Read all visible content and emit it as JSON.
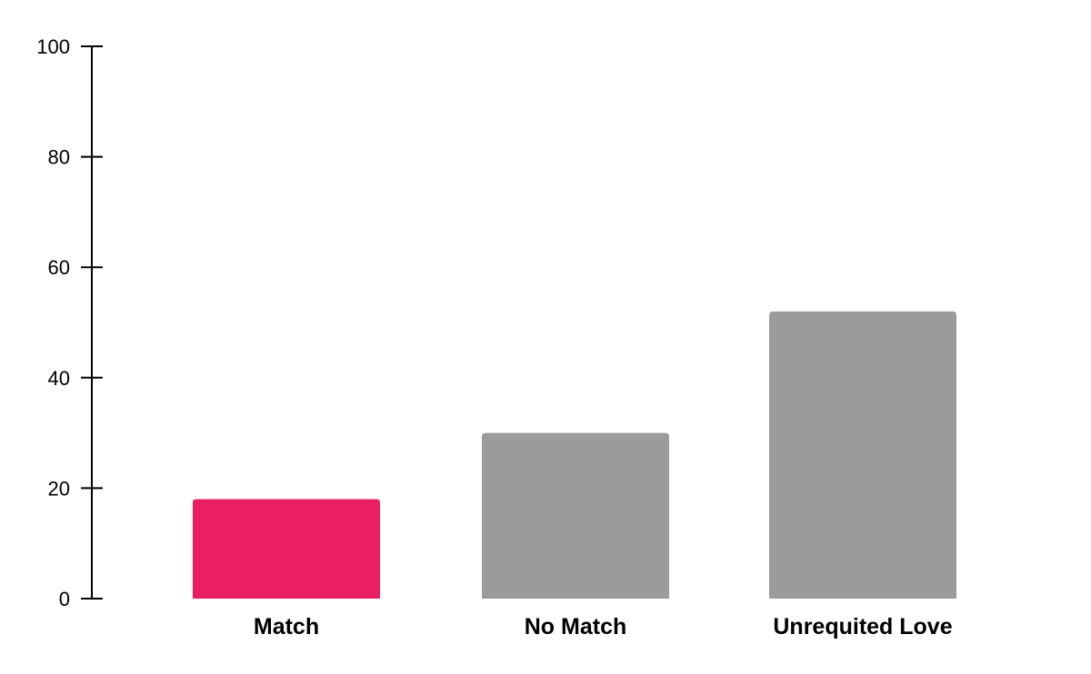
{
  "chart_data": {
    "type": "bar",
    "title": "",
    "xlabel": "",
    "ylabel": "",
    "categories": [
      "Match",
      "No Match",
      "Unrequited Love"
    ],
    "values": [
      18,
      30,
      52
    ],
    "ylim": [
      0,
      100
    ],
    "yticks": [
      0,
      20,
      40,
      60,
      80,
      100
    ],
    "grid": false,
    "legend": "none",
    "colors": [
      "#e91e63",
      "#9b9b9b",
      "#9b9b9b"
    ]
  }
}
